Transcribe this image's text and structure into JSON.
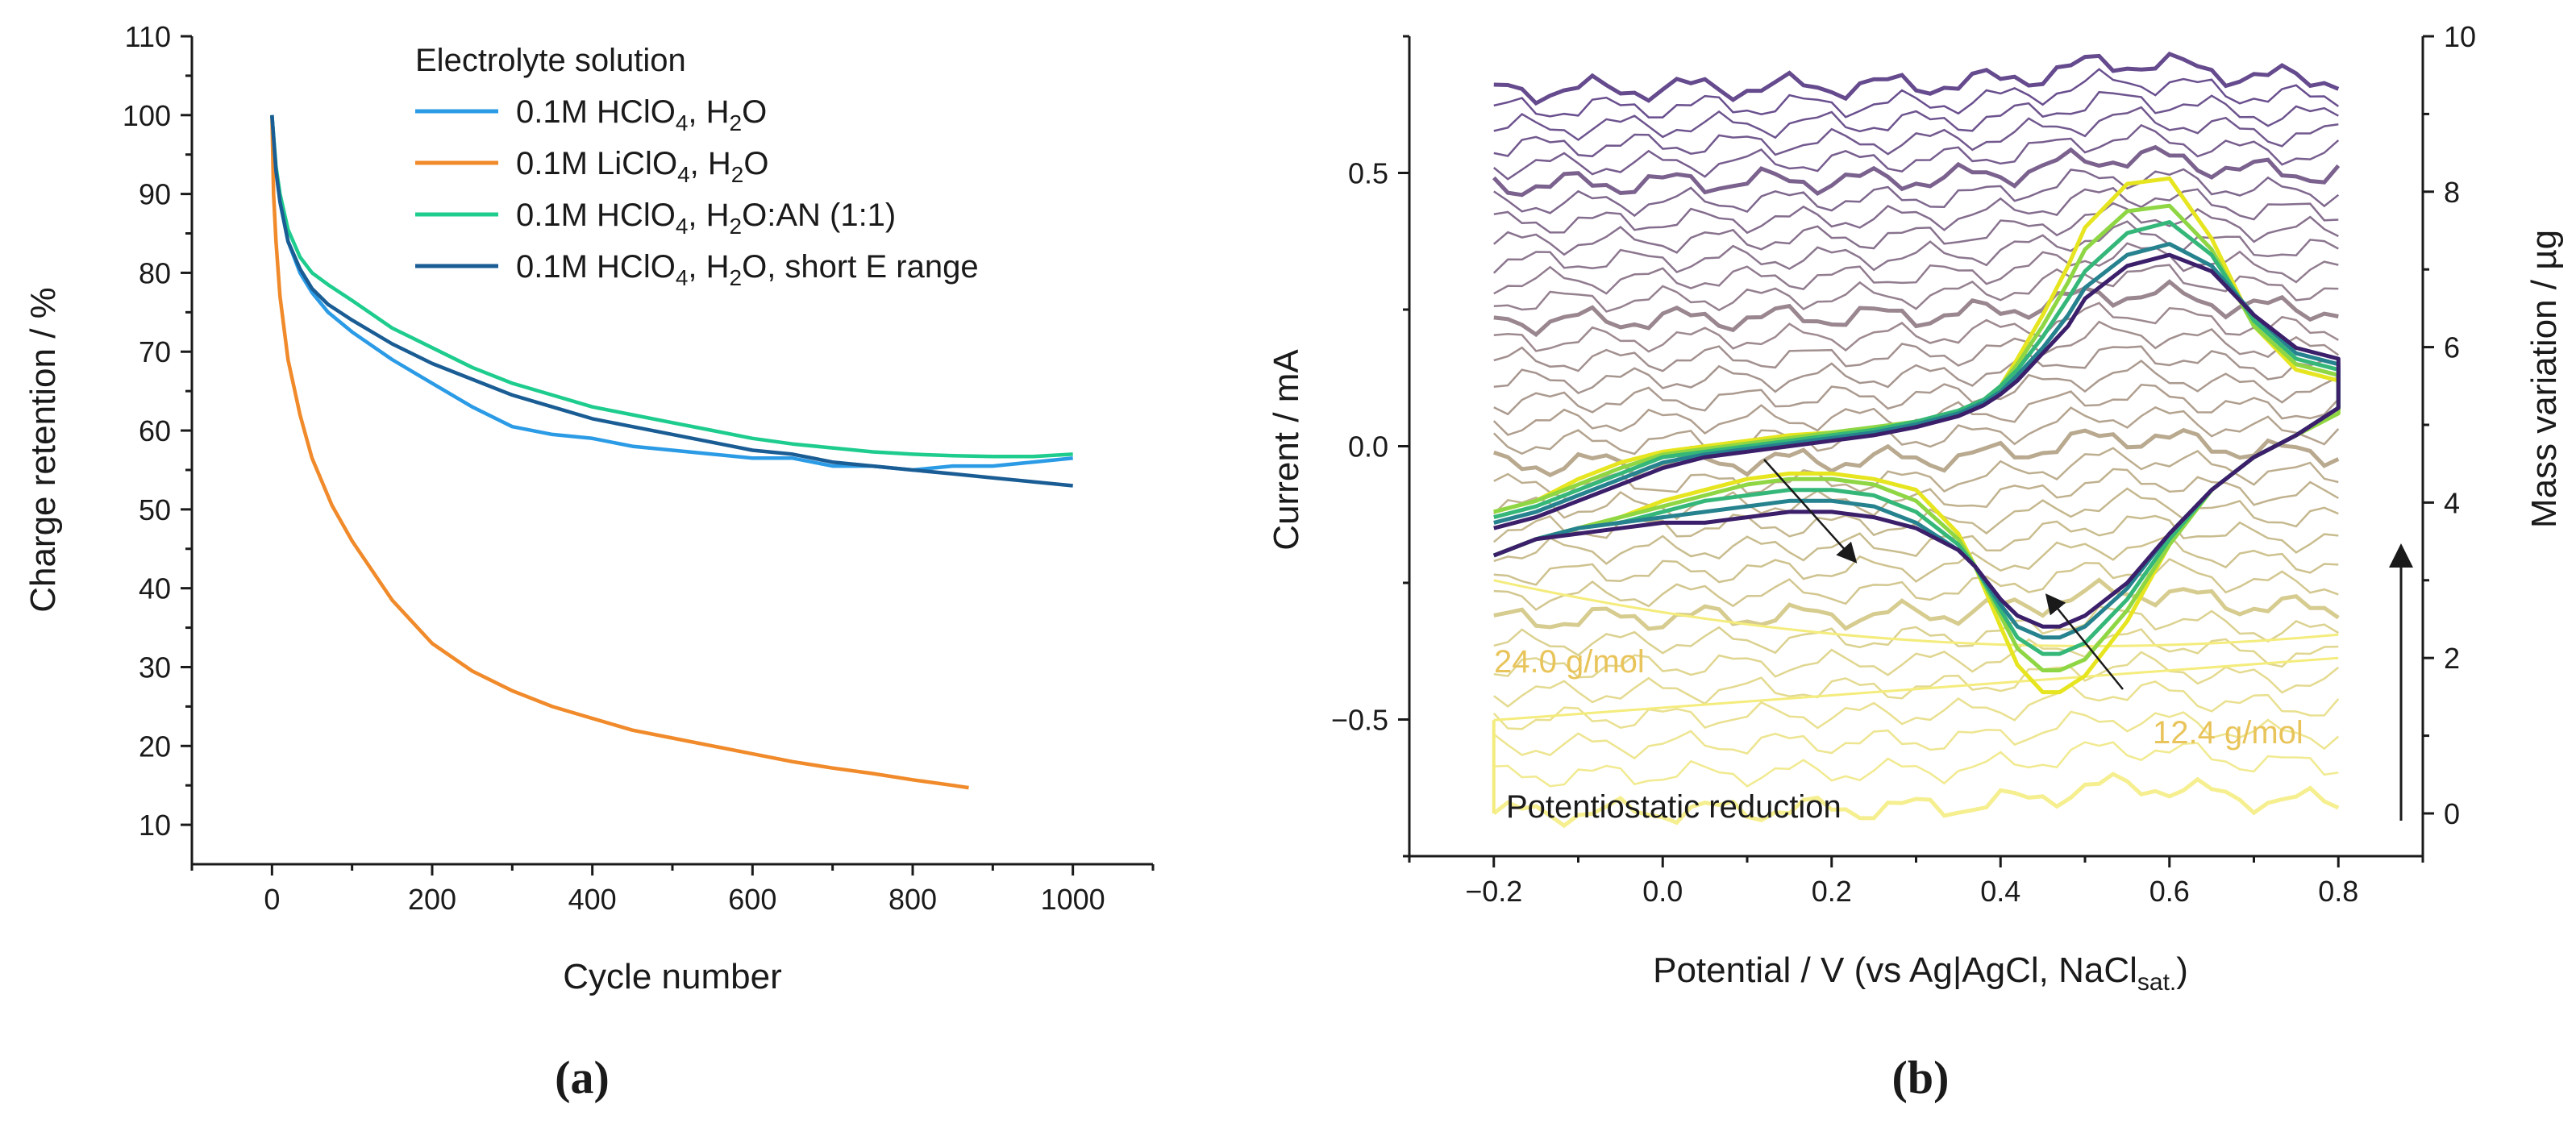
{
  "chart_data": [
    {
      "panel": "a",
      "type": "line",
      "caption": "(a)",
      "xlabel": "Cycle number",
      "ylabel": "Charge retention / %",
      "xlim": [
        -100,
        1100
      ],
      "ylim": [
        5,
        110
      ],
      "xticks": [
        0,
        200,
        400,
        600,
        800,
        1000
      ],
      "yticks": [
        10,
        20,
        30,
        40,
        50,
        60,
        70,
        80,
        90,
        100,
        110
      ],
      "legend_title": "Electrolyte solution",
      "legend_position": "top-right",
      "series": [
        {
          "name": "0.1M HClO4, H2O",
          "label_parts": [
            "0.1M HClO",
            "4",
            ", H",
            "2",
            "O"
          ],
          "color": "#2b9be6",
          "x": [
            0,
            5,
            10,
            20,
            35,
            50,
            70,
            100,
            150,
            200,
            250,
            300,
            350,
            400,
            450,
            500,
            550,
            600,
            650,
            700,
            750,
            800,
            850,
            900,
            950,
            1000
          ],
          "y": [
            100,
            93,
            89,
            84,
            80,
            77.5,
            75,
            72.5,
            69,
            66,
            63,
            60.5,
            59.5,
            59,
            58,
            57.5,
            57,
            56.5,
            56.5,
            55.5,
            55.5,
            55,
            55.5,
            55.5,
            56,
            56.5
          ]
        },
        {
          "name": "0.1M LiClO4, H2O",
          "label_parts": [
            "0.1M LiClO",
            "4",
            ", H",
            "2",
            "O"
          ],
          "color": "#f08a2a",
          "x": [
            0,
            2,
            5,
            10,
            20,
            35,
            50,
            75,
            100,
            150,
            200,
            250,
            300,
            350,
            400,
            450,
            500,
            550,
            600,
            650,
            700,
            750,
            800,
            850,
            870
          ],
          "y": [
            100,
            90,
            84,
            77,
            69,
            62,
            56.5,
            50.5,
            46,
            38.5,
            33,
            29.5,
            27,
            25,
            23.5,
            22,
            21,
            20,
            19,
            18,
            17.2,
            16.5,
            15.7,
            15,
            14.7
          ]
        },
        {
          "name": "0.1M HClO4, H2O:AN (1:1)",
          "label_parts": [
            "0.1M HClO",
            "4",
            ", H",
            "2",
            "O:AN (1:1)"
          ],
          "color": "#1ecc8e",
          "x": [
            0,
            5,
            10,
            20,
            35,
            50,
            70,
            100,
            150,
            200,
            250,
            300,
            350,
            400,
            450,
            500,
            550,
            600,
            650,
            700,
            750,
            800,
            850,
            900,
            950,
            1000
          ],
          "y": [
            100,
            93.5,
            90,
            85.5,
            82,
            80,
            78.5,
            76.5,
            73,
            70.5,
            68,
            66,
            64.5,
            63,
            62,
            61,
            60,
            59,
            58.3,
            57.8,
            57.3,
            57,
            56.8,
            56.7,
            56.7,
            57
          ]
        },
        {
          "name": "0.1M HClO4, H2O, short E range",
          "label_parts": [
            "0.1M HClO",
            "4",
            ", H",
            "2",
            "O, short E range"
          ],
          "color": "#1a5c94",
          "x": [
            0,
            5,
            10,
            20,
            35,
            50,
            70,
            100,
            150,
            200,
            250,
            300,
            350,
            400,
            450,
            500,
            550,
            600,
            650,
            700,
            750,
            800,
            850,
            900,
            950,
            1000
          ],
          "y": [
            100,
            93,
            89,
            84,
            80.5,
            78,
            76,
            74,
            71,
            68.5,
            66.5,
            64.5,
            63,
            61.5,
            60.5,
            59.5,
            58.5,
            57.5,
            57,
            56,
            55.5,
            55,
            54.5,
            54,
            53.5,
            53
          ]
        }
      ]
    },
    {
      "panel": "b",
      "type": "line",
      "caption": "(b)",
      "xlabel_main": "Potential / V (vs Ag|AgCl, NaCl",
      "xlabel_sub": "sat.",
      "xlabel_end": ")",
      "ylabel": "Current / mA",
      "ylabel_right": "Mass variation / µg",
      "xlim": [
        -0.3,
        0.9
      ],
      "ylim": [
        -0.75,
        0.75
      ],
      "ylim_right": [
        -0.55,
        10
      ],
      "xticks": [
        -0.2,
        0.0,
        0.2,
        0.4,
        0.6,
        0.8
      ],
      "yticks": [
        -0.5,
        0.0,
        0.5
      ],
      "yticks_right": [
        0,
        2,
        4,
        6,
        8,
        10
      ],
      "annotations": {
        "left_slope": "24.0 g/mol",
        "right_slope": "12.4 g/mol",
        "potentiostatic": "Potentiostatic reduction"
      },
      "cv_series": [
        {
          "name": "cycle-first",
          "color": "#e6e51f",
          "x": [
            -0.2,
            -0.15,
            -0.1,
            -0.05,
            0.0,
            0.05,
            0.1,
            0.15,
            0.2,
            0.25,
            0.3,
            0.35,
            0.38,
            0.4,
            0.42,
            0.45,
            0.48,
            0.5,
            0.55,
            0.6,
            0.65,
            0.7,
            0.75,
            0.8,
            0.8,
            0.75,
            0.7,
            0.65,
            0.6,
            0.55,
            0.5,
            0.47,
            0.45,
            0.42,
            0.4,
            0.37,
            0.35,
            0.3,
            0.25,
            0.2,
            0.15,
            0.1,
            0.05,
            0.0,
            -0.05,
            -0.1,
            -0.15,
            -0.2
          ],
          "y": [
            -0.12,
            -0.1,
            -0.06,
            -0.03,
            -0.01,
            0.0,
            0.01,
            0.02,
            0.025,
            0.03,
            0.04,
            0.06,
            0.08,
            0.11,
            0.16,
            0.24,
            0.33,
            0.4,
            0.48,
            0.49,
            0.38,
            0.22,
            0.14,
            0.12,
            0.06,
            0.02,
            -0.02,
            -0.08,
            -0.18,
            -0.32,
            -0.42,
            -0.45,
            -0.45,
            -0.4,
            -0.33,
            -0.22,
            -0.16,
            -0.08,
            -0.06,
            -0.05,
            -0.05,
            -0.06,
            -0.08,
            -0.1,
            -0.13,
            -0.15,
            -0.17,
            -0.2
          ]
        },
        {
          "name": "cycle-mid-1",
          "color": "#8fd644",
          "x": [
            -0.2,
            -0.15,
            -0.1,
            -0.05,
            0.0,
            0.05,
            0.1,
            0.15,
            0.2,
            0.25,
            0.3,
            0.35,
            0.38,
            0.4,
            0.42,
            0.45,
            0.48,
            0.5,
            0.55,
            0.6,
            0.65,
            0.7,
            0.75,
            0.8,
            0.8,
            0.75,
            0.7,
            0.65,
            0.6,
            0.55,
            0.5,
            0.47,
            0.45,
            0.42,
            0.4,
            0.37,
            0.35,
            0.3,
            0.25,
            0.2,
            0.15,
            0.1,
            0.05,
            0.0,
            -0.05,
            -0.1,
            -0.15,
            -0.2
          ],
          "y": [
            -0.12,
            -0.1,
            -0.07,
            -0.04,
            -0.015,
            -0.005,
            0.005,
            0.015,
            0.025,
            0.035,
            0.045,
            0.065,
            0.085,
            0.11,
            0.15,
            0.22,
            0.3,
            0.36,
            0.43,
            0.44,
            0.36,
            0.22,
            0.15,
            0.13,
            0.06,
            0.02,
            -0.02,
            -0.08,
            -0.18,
            -0.3,
            -0.39,
            -0.41,
            -0.41,
            -0.37,
            -0.31,
            -0.22,
            -0.17,
            -0.1,
            -0.07,
            -0.06,
            -0.06,
            -0.07,
            -0.09,
            -0.11,
            -0.13,
            -0.15,
            -0.17,
            -0.2
          ]
        },
        {
          "name": "cycle-mid-2",
          "color": "#35b779",
          "x": [
            -0.2,
            -0.15,
            -0.1,
            -0.05,
            0.0,
            0.05,
            0.1,
            0.15,
            0.2,
            0.25,
            0.3,
            0.35,
            0.38,
            0.4,
            0.42,
            0.45,
            0.48,
            0.5,
            0.55,
            0.6,
            0.65,
            0.7,
            0.75,
            0.8,
            0.8,
            0.75,
            0.7,
            0.65,
            0.6,
            0.55,
            0.5,
            0.47,
            0.45,
            0.42,
            0.4,
            0.37,
            0.35,
            0.3,
            0.25,
            0.2,
            0.15,
            0.1,
            0.05,
            0.0,
            -0.05,
            -0.1,
            -0.15,
            -0.2
          ],
          "y": [
            -0.13,
            -0.11,
            -0.08,
            -0.05,
            -0.02,
            -0.01,
            0.0,
            0.01,
            0.02,
            0.03,
            0.045,
            0.065,
            0.085,
            0.11,
            0.14,
            0.2,
            0.27,
            0.32,
            0.39,
            0.41,
            0.35,
            0.23,
            0.16,
            0.14,
            0.07,
            0.02,
            -0.02,
            -0.08,
            -0.17,
            -0.28,
            -0.36,
            -0.38,
            -0.38,
            -0.35,
            -0.3,
            -0.22,
            -0.18,
            -0.12,
            -0.09,
            -0.08,
            -0.08,
            -0.09,
            -0.1,
            -0.12,
            -0.14,
            -0.15,
            -0.17,
            -0.2
          ]
        },
        {
          "name": "cycle-mid-3",
          "color": "#26828e",
          "x": [
            -0.2,
            -0.15,
            -0.1,
            -0.05,
            0.0,
            0.05,
            0.1,
            0.15,
            0.2,
            0.25,
            0.3,
            0.35,
            0.38,
            0.4,
            0.42,
            0.45,
            0.48,
            0.5,
            0.55,
            0.6,
            0.65,
            0.7,
            0.75,
            0.8,
            0.8,
            0.75,
            0.7,
            0.65,
            0.6,
            0.55,
            0.5,
            0.47,
            0.45,
            0.42,
            0.4,
            0.37,
            0.35,
            0.3,
            0.25,
            0.2,
            0.15,
            0.1,
            0.05,
            0.0,
            -0.05,
            -0.1,
            -0.15,
            -0.2
          ],
          "y": [
            -0.14,
            -0.12,
            -0.09,
            -0.06,
            -0.03,
            -0.015,
            -0.005,
            0.005,
            0.015,
            0.025,
            0.04,
            0.06,
            0.08,
            0.1,
            0.13,
            0.18,
            0.24,
            0.29,
            0.35,
            0.37,
            0.33,
            0.24,
            0.17,
            0.15,
            0.07,
            0.02,
            -0.02,
            -0.08,
            -0.16,
            -0.26,
            -0.33,
            -0.35,
            -0.35,
            -0.33,
            -0.29,
            -0.22,
            -0.19,
            -0.14,
            -0.11,
            -0.1,
            -0.1,
            -0.11,
            -0.12,
            -0.13,
            -0.14,
            -0.15,
            -0.17,
            -0.2
          ]
        },
        {
          "name": "cycle-last",
          "color": "#3b1f6b",
          "x": [
            -0.2,
            -0.15,
            -0.1,
            -0.05,
            0.0,
            0.05,
            0.1,
            0.15,
            0.2,
            0.25,
            0.3,
            0.35,
            0.38,
            0.4,
            0.42,
            0.45,
            0.48,
            0.5,
            0.55,
            0.6,
            0.65,
            0.7,
            0.75,
            0.8,
            0.8,
            0.75,
            0.7,
            0.65,
            0.6,
            0.55,
            0.5,
            0.47,
            0.45,
            0.42,
            0.4,
            0.37,
            0.35,
            0.3,
            0.25,
            0.2,
            0.15,
            0.1,
            0.05,
            0.0,
            -0.05,
            -0.1,
            -0.15,
            -0.2
          ],
          "y": [
            -0.15,
            -0.13,
            -0.1,
            -0.07,
            -0.04,
            -0.02,
            -0.01,
            0.0,
            0.01,
            0.02,
            0.035,
            0.055,
            0.075,
            0.095,
            0.12,
            0.17,
            0.22,
            0.27,
            0.33,
            0.35,
            0.32,
            0.24,
            0.18,
            0.16,
            0.07,
            0.02,
            -0.02,
            -0.08,
            -0.16,
            -0.25,
            -0.31,
            -0.33,
            -0.33,
            -0.31,
            -0.28,
            -0.22,
            -0.19,
            -0.15,
            -0.13,
            -0.12,
            -0.12,
            -0.13,
            -0.14,
            -0.14,
            -0.15,
            -0.16,
            -0.17,
            -0.2
          ]
        }
      ],
      "mass_traces": {
        "x_range": [
          -0.2,
          0.8
        ],
        "count": 34,
        "start_mass_ug": 0,
        "end_mass_ug": 9.3,
        "color_start": "#f4ec7c",
        "color_end": "#4a2a7a"
      },
      "potentiostatic_step": {
        "x": -0.2,
        "mass_from_ug": 0,
        "mass_to_ug": 1.2
      }
    }
  ]
}
